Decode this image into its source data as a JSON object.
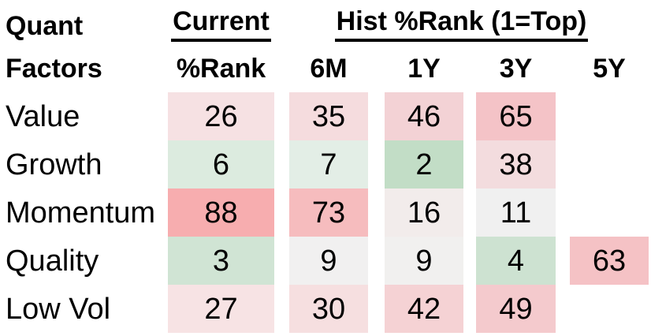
{
  "table": {
    "title_line1": "Quant",
    "title_line2": "Factors",
    "current_header": "Current",
    "hist_header": "Hist %Rank (1=Top)",
    "sub_headers": {
      "rank": "%Rank",
      "m6": "6M",
      "y1": "1Y",
      "y3": "3Y",
      "y5": "5Y"
    },
    "rows": [
      {
        "label": "Value",
        "cells": [
          {
            "value": "26",
            "color": "#f6e1e3"
          },
          {
            "value": "35",
            "color": "#f5dcde"
          },
          {
            "value": "46",
            "color": "#f3d2d5"
          },
          {
            "value": "65",
            "color": "#f4c3c7"
          },
          {
            "value": "",
            "color": null
          }
        ]
      },
      {
        "label": "Growth",
        "cells": [
          {
            "value": "6",
            "color": "#dcebdf"
          },
          {
            "value": "7",
            "color": "#e3eee6"
          },
          {
            "value": "2",
            "color": "#c2ddc6"
          },
          {
            "value": "38",
            "color": "#f3dcde"
          },
          {
            "value": "",
            "color": null
          }
        ]
      },
      {
        "label": "Momentum",
        "cells": [
          {
            "value": "88",
            "color": "#f7adaf"
          },
          {
            "value": "73",
            "color": "#f6bcbe"
          },
          {
            "value": "16",
            "color": "#f2eceb"
          },
          {
            "value": "11",
            "color": "#f0f0f0"
          },
          {
            "value": "",
            "color": null
          }
        ]
      },
      {
        "label": "Quality",
        "cells": [
          {
            "value": "3",
            "color": "#d0e4d4"
          },
          {
            "value": "9",
            "color": "#f1f0f0"
          },
          {
            "value": "9",
            "color": "#f1f0ef"
          },
          {
            "value": "4",
            "color": "#cde2d1"
          },
          {
            "value": "63",
            "color": "#f5c2c5"
          }
        ]
      },
      {
        "label": "Low Vol",
        "cells": [
          {
            "value": "27",
            "color": "#f7e3e4"
          },
          {
            "value": "30",
            "color": "#f6dfe0"
          },
          {
            "value": "42",
            "color": "#f5d2d4"
          },
          {
            "value": "49",
            "color": "#f4cacd"
          },
          {
            "value": "",
            "color": null
          }
        ]
      }
    ],
    "colors": {
      "good_rank_green": "#c2ddc6",
      "bad_rank_red": "#f7adaf",
      "neutral": "#f0f0f0",
      "text": "#000000",
      "background": "#ffffff"
    }
  },
  "chart_data": {
    "type": "heatmap",
    "title": "Quant Factors",
    "column_groups": [
      {
        "label": "Current",
        "columns": [
          "%Rank"
        ]
      },
      {
        "label": "Hist %Rank (1=Top)",
        "columns": [
          "6M",
          "1Y",
          "3Y",
          "5Y"
        ]
      }
    ],
    "rows": [
      "Value",
      "Growth",
      "Momentum",
      "Quality",
      "Low Vol"
    ],
    "columns": [
      "Current %Rank",
      "6M",
      "1Y",
      "3Y",
      "5Y"
    ],
    "values": [
      [
        26,
        35,
        46,
        65,
        null
      ],
      [
        6,
        7,
        2,
        38,
        null
      ],
      [
        88,
        73,
        16,
        11,
        null
      ],
      [
        3,
        9,
        9,
        4,
        63
      ],
      [
        27,
        30,
        42,
        49,
        null
      ]
    ],
    "value_range": [
      1,
      100
    ],
    "color_scale": "green = low percentile rank (1 = top), red = high percentile rank"
  }
}
